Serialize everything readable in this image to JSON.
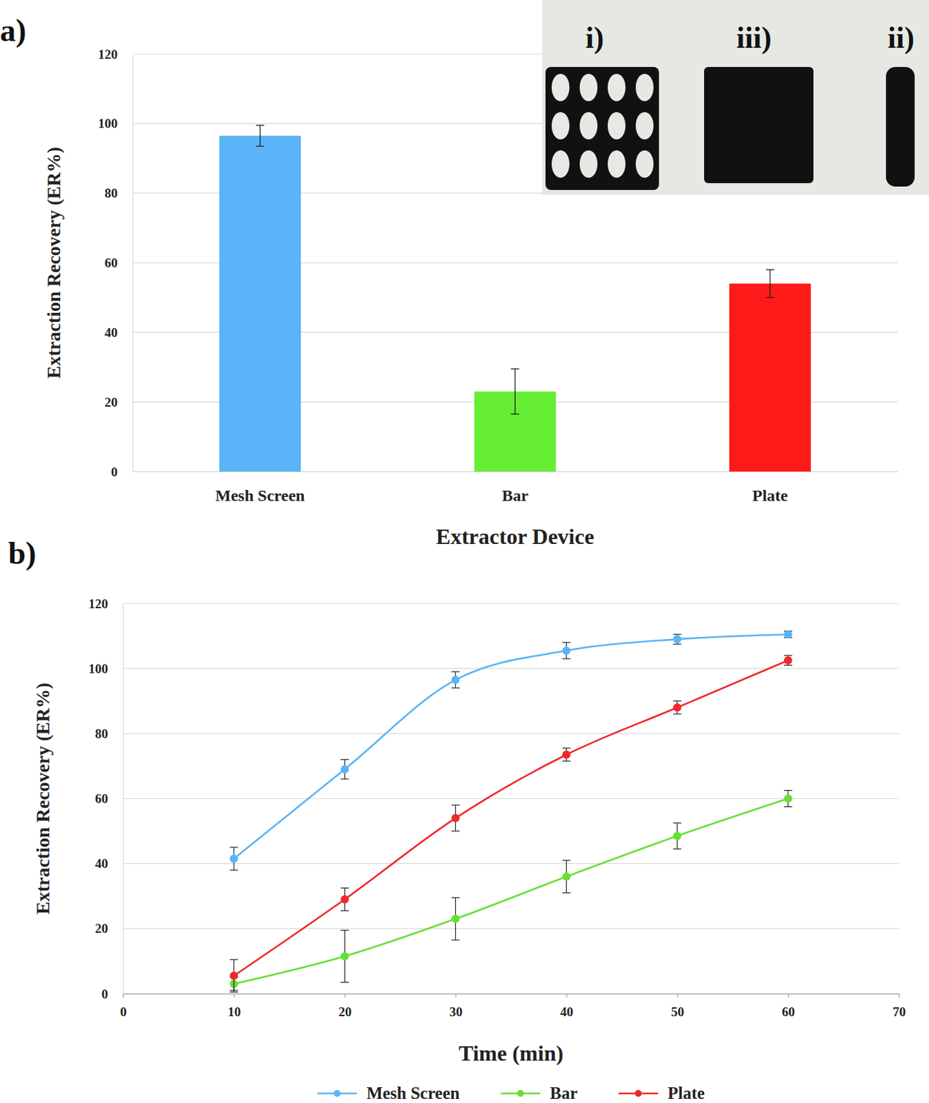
{
  "chart_data": [
    {
      "type": "bar",
      "title": "a)",
      "categories": [
        "Mesh Screen",
        "Bar",
        "Plate"
      ],
      "values": [
        96.5,
        23,
        54
      ],
      "errors": [
        3,
        6.5,
        4
      ],
      "colors": [
        "#5ab4f7",
        "#66ee33",
        "#ff1a1a"
      ],
      "xlabel": "Extractor Device",
      "ylabel": "Extraction Recovery (ER%)",
      "ylim": [
        0,
        120
      ],
      "yticks": [
        0,
        20,
        40,
        60,
        80,
        100,
        120
      ],
      "grid": true,
      "annotations": [
        "i)",
        "iii)",
        "ii)"
      ]
    },
    {
      "type": "line",
      "title": "b)",
      "x": [
        10,
        20,
        30,
        40,
        50,
        60
      ],
      "xlim": [
        0,
        70
      ],
      "xticks": [
        0,
        10,
        20,
        30,
        40,
        50,
        60,
        70
      ],
      "ylim": [
        0,
        120
      ],
      "yticks": [
        0,
        20,
        40,
        60,
        80,
        100,
        120
      ],
      "xlabel": "Time (min)",
      "ylabel": "Extraction Recovery (ER%)",
      "grid": true,
      "legend": "bottom",
      "marker": "circle",
      "line_style": "smooth",
      "series": [
        {
          "name": "Mesh Screen",
          "color": "#5ab4f7",
          "values": [
            41.5,
            69,
            96.5,
            105.5,
            109,
            110.5
          ],
          "errors": [
            3.5,
            3,
            2.5,
            2.5,
            1.5,
            1
          ]
        },
        {
          "name": "Bar",
          "color": "#66e033",
          "values": [
            3,
            11.5,
            23,
            36,
            48.5,
            60
          ],
          "errors": [
            2,
            8,
            6.5,
            5,
            4,
            2.5
          ]
        },
        {
          "name": "Plate",
          "color": "#f0282d",
          "values": [
            5.5,
            29,
            54,
            73.5,
            88,
            102.5
          ],
          "errors": [
            5,
            3.5,
            4,
            2,
            2,
            1.5
          ]
        }
      ]
    }
  ]
}
